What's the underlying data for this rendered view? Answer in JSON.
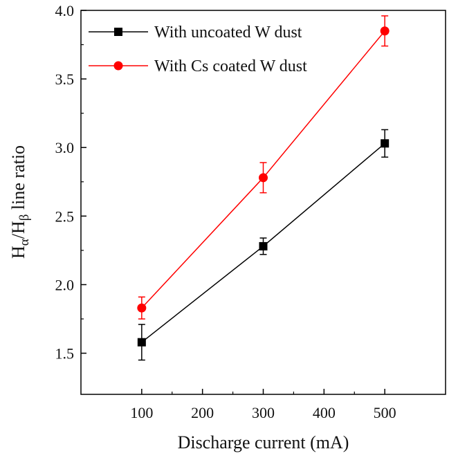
{
  "chart_data": {
    "type": "line",
    "title": "",
    "x": [
      100,
      300,
      500
    ],
    "xlabel": "Discharge current (mA)",
    "ylabel": {
      "main_base": "H",
      "main_sub": "α",
      "slash": "/",
      "second_base": "H",
      "second_sub": "β",
      "rest": " line ratio"
    },
    "xlim": [
      0,
      600
    ],
    "ylim": [
      1.2,
      4.0
    ],
    "xticks": [
      100,
      200,
      300,
      400,
      500
    ],
    "xtick_labels": [
      "100",
      "200",
      "300",
      "400",
      "500"
    ],
    "yticks": [
      1.5,
      2.0,
      2.5,
      3.0,
      3.5,
      4.0
    ],
    "ytick_labels": [
      "1.5",
      "2.0",
      "2.5",
      "3.0",
      "3.5",
      "4.0"
    ],
    "legend_position": "top-left",
    "series": [
      {
        "name": "With uncoated W dust",
        "marker": "square",
        "color": "#000000",
        "values": [
          1.58,
          2.28,
          3.03
        ],
        "errors": [
          0.13,
          0.06,
          0.1
        ]
      },
      {
        "name": "With Cs coated W dust",
        "marker": "circle",
        "color": "#ff0000",
        "values": [
          1.83,
          2.78,
          3.85
        ],
        "errors": [
          0.08,
          0.11,
          0.11
        ]
      }
    ]
  }
}
